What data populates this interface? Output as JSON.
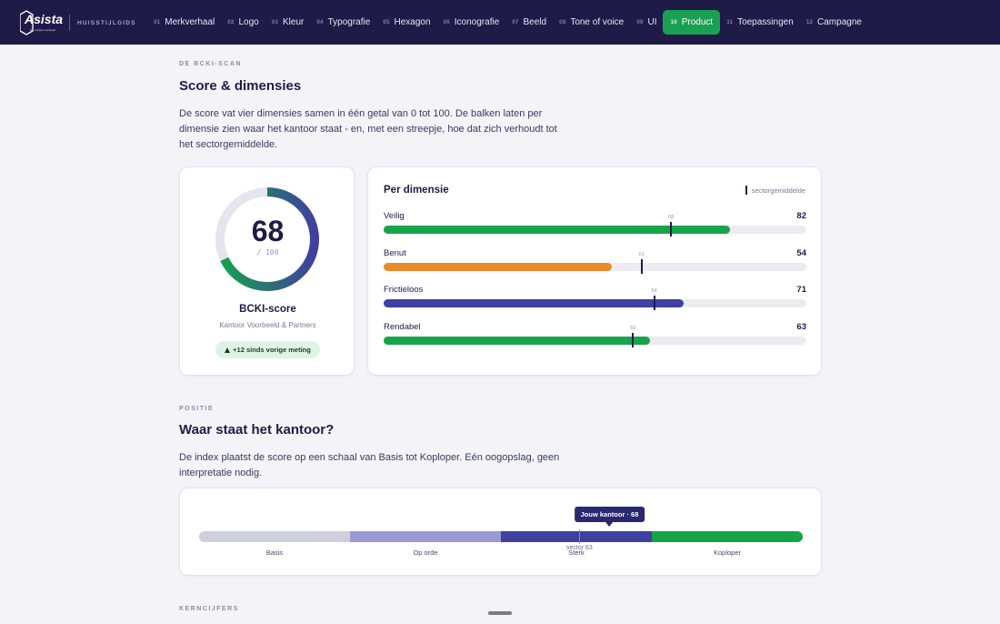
{
  "nav": {
    "logo_text": "Asista",
    "logo_tagline": "De veiligste werkplek",
    "subtitle": "HUISSTIJLGIDS",
    "items": [
      {
        "num": "01",
        "label": "Merkverhaal"
      },
      {
        "num": "02",
        "label": "Logo"
      },
      {
        "num": "03",
        "label": "Kleur"
      },
      {
        "num": "04",
        "label": "Typografie"
      },
      {
        "num": "05",
        "label": "Hexagon"
      },
      {
        "num": "06",
        "label": "Iconografie"
      },
      {
        "num": "07",
        "label": "Beeld"
      },
      {
        "num": "08",
        "label": "Tone of voice"
      },
      {
        "num": "09",
        "label": "UI"
      },
      {
        "num": "10",
        "label": "Product",
        "active": true
      },
      {
        "num": "11",
        "label": "Toepassingen"
      },
      {
        "num": "12",
        "label": "Campagne"
      }
    ]
  },
  "section1": {
    "eyebrow": "DE BCKI-SCAN",
    "title": "Score & dimensies",
    "text": "De score vat vier dimensies samen in één getal van 0 tot 100. De balken laten per dimensie zien waar het kantoor staat - en, met een streepje, hoe dat zich verhoudt tot het sectorgemiddelde."
  },
  "score_card": {
    "score": "68",
    "score_value": 68,
    "max": "/ 100",
    "title": "BCKI-score",
    "subtitle": "Kantoor Voorbeeld & Partners",
    "badge": "+12 sinds vorige meting"
  },
  "dimensions_card": {
    "title": "Per dimensie",
    "legend": "sectorgemiddelde",
    "rows": [
      {
        "label": "Veilig",
        "value": "82",
        "score": 82,
        "avg_label": "68",
        "avg": 68,
        "color": "#17a34a"
      },
      {
        "label": "Benut",
        "value": "54",
        "score": 54,
        "avg_label": "61",
        "avg": 61,
        "color": "#e98a2b"
      },
      {
        "label": "Frictieloos",
        "value": "71",
        "score": 71,
        "avg_label": "64",
        "avg": 64,
        "color": "#3f40a0"
      },
      {
        "label": "Rendabel",
        "value": "63",
        "score": 63,
        "avg_label": "59",
        "avg": 59,
        "color": "#17a34a"
      }
    ]
  },
  "section2": {
    "eyebrow": "POSITIE",
    "title": "Waar staat het kantoor?",
    "text": "De index plaatst de score op een schaal van Basis tot Koploper. Eén oogopslag, geen interpretatie nodig."
  },
  "position": {
    "segments": [
      {
        "label": "Basis",
        "color": "#cfcfdc"
      },
      {
        "label": "Op orde",
        "color": "#9c9ad4"
      },
      {
        "label": "Sterk",
        "color": "#3f40a0"
      },
      {
        "label": "Koploper",
        "color": "#17a34a"
      }
    ],
    "office_label": "Jouw kantoor · 68",
    "office_score": 68,
    "sector_label": "sector 63",
    "sector_score": 63
  },
  "section3": {
    "eyebrow": "KERNCIJFERS"
  },
  "colors": {
    "navy": "#1e1b48",
    "green": "#17a34a",
    "orange": "#e98a2b",
    "indigo": "#3f40a0"
  }
}
